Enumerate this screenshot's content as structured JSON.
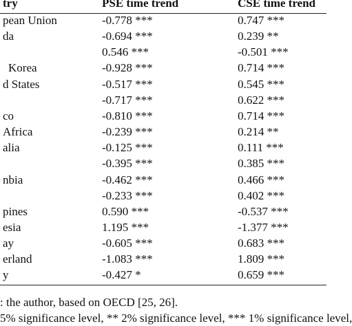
{
  "table": {
    "header": [
      "try",
      "PSE time trend",
      "CSE time trend"
    ],
    "rows": [
      {
        "country": "pean Union",
        "pse": "-0.778 ***",
        "cse": "0.747 ***"
      },
      {
        "country": "da",
        "pse": "-0.694 ***",
        "cse": "0.239 **"
      },
      {
        "pse": "0.546 ***",
        "cse": "-0.501 ***"
      },
      {
        "country": "Korea",
        "pse": "-0.928 ***",
        "cse": "0.714 ***"
      },
      {
        "country": "d States",
        "pse": "-0.517 ***",
        "cse": "0.545 ***"
      },
      {
        "pse": "-0.717 ***",
        "cse": "0.622 ***"
      },
      {
        "country": "co",
        "pse": "-0.810 ***",
        "cse": "0.714 ***"
      },
      {
        "country": "Africa",
        "pse": "-0.239 ***",
        "cse": "0.214 **"
      },
      {
        "country": "alia",
        "pse": "-0.125 ***",
        "cse": "0.111 ***"
      },
      {
        "pse": "-0.395 ***",
        "cse": "0.385 ***"
      },
      {
        "country": "nbia",
        "pse": "-0.462 ***",
        "cse": "0.466 ***"
      },
      {
        "pse": "-0.233 ***",
        "cse": "0.402 ***"
      },
      {
        "country": "pines",
        "pse": "0.590 ***",
        "cse": "-0.537 ***"
      },
      {
        "country": "esia",
        "pse": "1.195 ***",
        "cse": "-1.377 ***"
      },
      {
        "country": "ay",
        "pse": "-0.605 ***",
        "cse": "0.683 ***"
      },
      {
        "country": "erland",
        "pse": "-1.083 ***",
        "cse": "1.809 ***"
      },
      {
        "country": "y",
        "pse": "-0.427 *",
        "cse": "0.659 ***"
      }
    ]
  },
  "footer": [
    ": the author, based on OECD [25, 26].",
    "5% significance level, ** 2% significance level, *** 1% significance level,"
  ]
}
